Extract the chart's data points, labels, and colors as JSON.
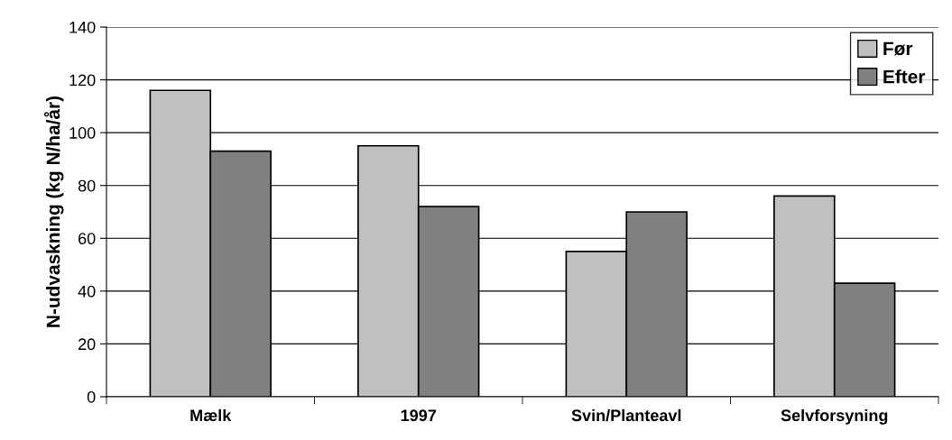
{
  "chart_data": {
    "type": "bar",
    "ylabel": "N-udvaskning (kg N/ha/år)",
    "categories": [
      "Mælk",
      "1997",
      "Svin/Planteavl",
      "Selvforsyning"
    ],
    "series": [
      {
        "name": "Før",
        "color": "#c0c0c0",
        "values": [
          116,
          95,
          55,
          76
        ]
      },
      {
        "name": "Efter",
        "color": "#808080",
        "values": [
          93,
          72,
          70,
          43
        ]
      }
    ],
    "ylim": [
      0,
      140
    ],
    "yticks": [
      0,
      20,
      40,
      60,
      80,
      100,
      120,
      140
    ],
    "grid": "y",
    "legend": "top right"
  }
}
